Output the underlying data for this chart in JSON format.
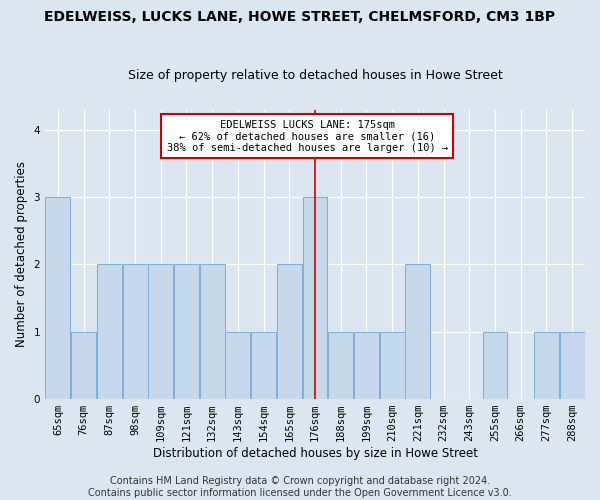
{
  "title": "EDELWEISS, LUCKS LANE, HOWE STREET, CHELMSFORD, CM3 1BP",
  "subtitle": "Size of property relative to detached houses in Howe Street",
  "xlabel": "Distribution of detached houses by size in Howe Street",
  "ylabel": "Number of detached properties",
  "categories": [
    "65sqm",
    "76sqm",
    "87sqm",
    "98sqm",
    "109sqm",
    "121sqm",
    "132sqm",
    "143sqm",
    "154sqm",
    "165sqm",
    "176sqm",
    "188sqm",
    "199sqm",
    "210sqm",
    "221sqm",
    "232sqm",
    "243sqm",
    "255sqm",
    "266sqm",
    "277sqm",
    "288sqm"
  ],
  "values": [
    3,
    1,
    2,
    2,
    2,
    2,
    2,
    1,
    1,
    2,
    3,
    1,
    1,
    1,
    2,
    0,
    0,
    1,
    0,
    1,
    1
  ],
  "bar_color": "#c5d8ec",
  "bar_edge_color": "#7aafd4",
  "reference_line_index": 10,
  "reference_line_label": "EDELWEISS LUCKS LANE: 175sqm",
  "annotation_line1": "← 62% of detached houses are smaller (16)",
  "annotation_line2": "38% of semi-detached houses are larger (10) →",
  "annotation_box_color": "#ffffff",
  "annotation_border_color": "#cc0000",
  "vline_color": "#cc0000",
  "ylim": [
    0,
    4.3
  ],
  "yticks": [
    0,
    1,
    2,
    3,
    4
  ],
  "background_color": "#dce6f0",
  "grid_color": "#c0cdd8",
  "footer": "Contains HM Land Registry data © Crown copyright and database right 2024.\nContains public sector information licensed under the Open Government Licence v3.0.",
  "title_fontsize": 10,
  "subtitle_fontsize": 9,
  "xlabel_fontsize": 8.5,
  "ylabel_fontsize": 8.5,
  "tick_fontsize": 7.5,
  "footer_fontsize": 7
}
